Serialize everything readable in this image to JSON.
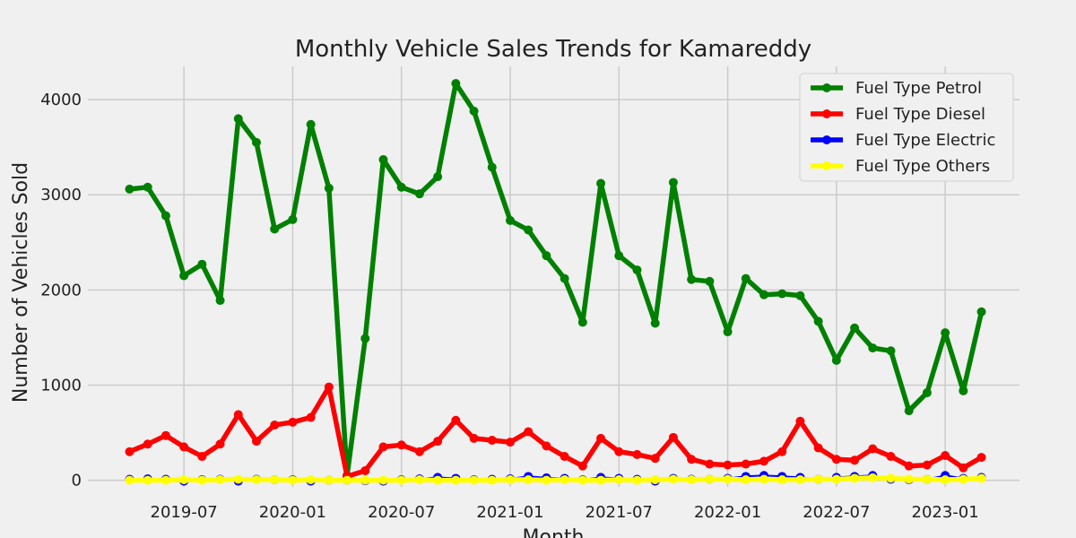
{
  "chart_data": {
    "type": "line",
    "title": "Monthly Vehicle Sales Trends for Kamareddy",
    "xlabel": "Month",
    "ylabel": "Number of Vehicles Sold",
    "ylim": [
      0,
      4350
    ],
    "yticks": [
      0,
      1000,
      2000,
      3000,
      4000
    ],
    "xticks": [
      "2019-07",
      "2020-01",
      "2020-07",
      "2021-01",
      "2021-07",
      "2022-01",
      "2022-07",
      "2023-01"
    ],
    "grid": true,
    "legend_position": "top-right",
    "x": [
      "2019-04",
      "2019-05",
      "2019-06",
      "2019-07",
      "2019-08",
      "2019-09",
      "2019-10",
      "2019-11",
      "2019-12",
      "2020-01",
      "2020-02",
      "2020-03",
      "2020-04",
      "2020-05",
      "2020-06",
      "2020-07",
      "2020-08",
      "2020-09",
      "2020-10",
      "2020-11",
      "2020-12",
      "2021-01",
      "2021-02",
      "2021-03",
      "2021-04",
      "2021-05",
      "2021-06",
      "2021-07",
      "2021-08",
      "2021-09",
      "2021-10",
      "2021-11",
      "2021-12",
      "2022-01",
      "2022-02",
      "2022-03",
      "2022-04",
      "2022-05",
      "2022-06",
      "2022-07",
      "2022-08",
      "2022-09",
      "2022-10",
      "2022-11",
      "2022-12",
      "2023-01",
      "2023-02",
      "2023-03"
    ],
    "series": [
      {
        "name": "Fuel Type Petrol",
        "color": "#008000",
        "values": [
          3060,
          3080,
          2780,
          2150,
          2270,
          1890,
          3800,
          3550,
          2640,
          2740,
          3740,
          3070,
          50,
          1490,
          3370,
          3080,
          3010,
          3190,
          4170,
          3880,
          3290,
          2730,
          2630,
          2360,
          2120,
          1660,
          3120,
          2360,
          2210,
          1650,
          3130,
          2110,
          2090,
          1560,
          2120,
          1950,
          1960,
          1940,
          1670,
          1260,
          1600,
          1390,
          1360,
          730,
          920,
          1550,
          940,
          1770
        ]
      },
      {
        "name": "Fuel Type Diesel",
        "color": "#ff0000",
        "values": [
          300,
          380,
          470,
          350,
          250,
          380,
          690,
          410,
          580,
          610,
          660,
          980,
          40,
          100,
          350,
          370,
          300,
          410,
          630,
          440,
          420,
          400,
          510,
          360,
          250,
          150,
          440,
          300,
          270,
          230,
          450,
          220,
          170,
          160,
          170,
          200,
          300,
          620,
          340,
          220,
          210,
          330,
          250,
          150,
          160,
          260,
          130,
          240
        ]
      },
      {
        "name": "Fuel Type Electric",
        "color": "#0000ff",
        "values": [
          10,
          15,
          10,
          -10,
          5,
          10,
          -10,
          10,
          5,
          5,
          -10,
          0,
          0,
          -5,
          -10,
          5,
          15,
          30,
          20,
          5,
          10,
          15,
          40,
          25,
          20,
          5,
          30,
          20,
          10,
          -10,
          20,
          10,
          10,
          20,
          40,
          50,
          40,
          30,
          10,
          30,
          40,
          50,
          10,
          5,
          10,
          50,
          20,
          30
        ]
      },
      {
        "name": "Fuel Type Others",
        "color": "#ffff00",
        "values": [
          0,
          0,
          0,
          5,
          0,
          5,
          10,
          5,
          5,
          0,
          5,
          0,
          0,
          0,
          0,
          0,
          5,
          0,
          0,
          0,
          0,
          5,
          5,
          0,
          5,
          0,
          0,
          5,
          0,
          5,
          10,
          5,
          10,
          10,
          5,
          10,
          5,
          5,
          10,
          10,
          20,
          25,
          20,
          10,
          10,
          5,
          10,
          20
        ]
      }
    ]
  }
}
